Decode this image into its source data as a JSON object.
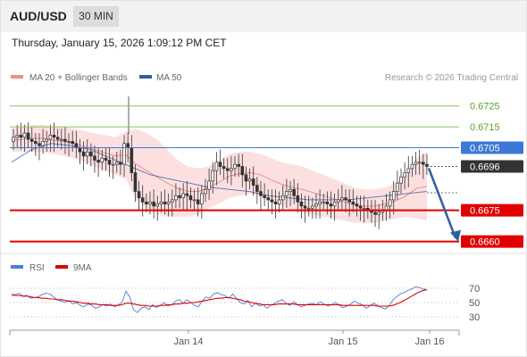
{
  "header": {
    "symbol": "AUD/USD",
    "timeframe": "30 MIN"
  },
  "datetime": "Thursday, January 15, 2026 1:09:12 PM CET",
  "legend": {
    "bollinger": "MA 20 + Bollinger Bands",
    "ma50": "MA 50",
    "credit": "Research © 2026 Trading Central",
    "rsi": "RSI",
    "rsi_ma": "9MA"
  },
  "colors": {
    "bollinger": "#f08c8c",
    "ma50": "#2f5f9e",
    "support": "#e00000",
    "resistance": "#88c45a",
    "pivot": "#3c78d8",
    "arrow": "#2f5f9e",
    "rsi": "#4a7fd4",
    "rsi_ma": "#e00000"
  },
  "chart_data": [
    {
      "type": "candlestick",
      "title": "AUD/USD 30 MIN",
      "ylim": [
        0.6656,
        0.6733
      ],
      "x_ticks": [
        "Jan 14",
        "Jan 15",
        "Jan 16"
      ],
      "levels": [
        {
          "label": "0.6725",
          "value": 0.6725,
          "kind": "resistance"
        },
        {
          "label": "0.6715",
          "value": 0.6715,
          "kind": "resistance"
        },
        {
          "label": "0.6705",
          "value": 0.6705,
          "kind": "pivot"
        },
        {
          "label": "0.6696",
          "value": 0.6696,
          "kind": "last"
        },
        {
          "label": "0.6675",
          "value": 0.6675,
          "kind": "support"
        },
        {
          "label": "0.6660",
          "value": 0.666,
          "kind": "support"
        }
      ],
      "close": [
        0.671,
        0.6711,
        0.671,
        0.6712,
        0.6709,
        0.6708,
        0.6707,
        0.6706,
        0.6708,
        0.6709,
        0.6711,
        0.671,
        0.6709,
        0.6709,
        0.6708,
        0.6708,
        0.6707,
        0.6705,
        0.6703,
        0.6701,
        0.6703,
        0.6701,
        0.6699,
        0.6698,
        0.67,
        0.6699,
        0.6697,
        0.6697,
        0.6698,
        0.6697,
        0.6707,
        0.6705,
        0.6693,
        0.6684,
        0.6681,
        0.6679,
        0.6678,
        0.6679,
        0.6677,
        0.6678,
        0.6679,
        0.6678,
        0.6679,
        0.668,
        0.6682,
        0.6681,
        0.6683,
        0.6682,
        0.668,
        0.668,
        0.6678,
        0.6683,
        0.6685,
        0.6689,
        0.6694,
        0.6698,
        0.6696,
        0.6695,
        0.6694,
        0.6695,
        0.6697,
        0.6696,
        0.6692,
        0.6689,
        0.669,
        0.6687,
        0.6684,
        0.6682,
        0.6681,
        0.668,
        0.6679,
        0.6678,
        0.668,
        0.6682,
        0.6684,
        0.6685,
        0.6682,
        0.6679,
        0.6677,
        0.6676,
        0.6676,
        0.6677,
        0.6678,
        0.6679,
        0.6679,
        0.6678,
        0.6677,
        0.6679,
        0.668,
        0.6681,
        0.668,
        0.6679,
        0.6678,
        0.6677,
        0.6676,
        0.6676,
        0.6675,
        0.6674,
        0.6673,
        0.6674,
        0.6675,
        0.6677,
        0.668,
        0.6684,
        0.6688,
        0.6691,
        0.6693,
        0.6695,
        0.6697,
        0.6698,
        0.6698,
        0.6697,
        0.6696
      ],
      "ma50_level": [
        0.6698,
        0.6704,
        0.6707,
        0.6706,
        0.6704,
        0.67,
        0.6696,
        0.6692,
        0.669,
        0.6688,
        0.6686,
        0.6685,
        0.6684,
        0.6682,
        0.6681,
        0.668,
        0.668,
        0.668,
        0.6681,
        0.6682,
        0.6683,
        0.6684
      ],
      "bb_upper": [
        0.6714,
        0.6715,
        0.6716,
        0.6716,
        0.6715,
        0.6715,
        0.6714,
        0.6713,
        0.6712,
        0.6711,
        0.671,
        0.6713,
        0.6714,
        0.6712,
        0.6709,
        0.6704,
        0.6699,
        0.6696,
        0.6695,
        0.6696,
        0.6699,
        0.6702,
        0.6703,
        0.6703,
        0.6702,
        0.67,
        0.6698,
        0.6697,
        0.6696,
        0.6694,
        0.6692,
        0.669,
        0.6688,
        0.6686,
        0.6685,
        0.6685,
        0.6686,
        0.6688,
        0.6692,
        0.67,
        0.6703
      ],
      "bb_lower": [
        0.6703,
        0.6703,
        0.6703,
        0.6703,
        0.6702,
        0.6701,
        0.67,
        0.6698,
        0.6696,
        0.6694,
        0.6692,
        0.669,
        0.668,
        0.6676,
        0.6673,
        0.6672,
        0.6672,
        0.6672,
        0.6673,
        0.6676,
        0.6678,
        0.6681,
        0.6682,
        0.6683,
        0.6682,
        0.6679,
        0.6677,
        0.6675,
        0.6674,
        0.6673,
        0.6672,
        0.6671,
        0.667,
        0.6669,
        0.6669,
        0.6669,
        0.667,
        0.6671,
        0.6672,
        0.6671,
        0.667
      ],
      "forecast": {
        "from": 0.6696,
        "to": 0.666
      }
    },
    {
      "type": "line",
      "title": "RSI",
      "ylim": [
        20,
        80
      ],
      "y_ticks": [
        "70",
        "50",
        "30"
      ],
      "series": [
        {
          "name": "RSI",
          "values": [
            62,
            61,
            63,
            59,
            60,
            56,
            57,
            58,
            61,
            63,
            62,
            58,
            54,
            52,
            50,
            53,
            48,
            50,
            46,
            44,
            48,
            46,
            42,
            44,
            47,
            45,
            48,
            44,
            47,
            50,
            66,
            58,
            40,
            36,
            42,
            44,
            40,
            47,
            43,
            46,
            50,
            45,
            47,
            52,
            54,
            49,
            54,
            50,
            46,
            44,
            52,
            58,
            56,
            62,
            64,
            61,
            60,
            56,
            62,
            56,
            50,
            48,
            53,
            44,
            49,
            45,
            47,
            42,
            46,
            49,
            52,
            54,
            49,
            46,
            51,
            47,
            44,
            46,
            48,
            49,
            47,
            51,
            48,
            45,
            47,
            50,
            46,
            43,
            45,
            48,
            52,
            49,
            47,
            42,
            45,
            49,
            46,
            43,
            41,
            45,
            53,
            58,
            62,
            64,
            67,
            69,
            72,
            71,
            69,
            68
          ]
        },
        {
          "name": "9MA",
          "values": [
            60,
            60,
            60,
            59,
            59,
            58,
            57,
            57,
            56,
            56,
            55,
            55,
            54,
            54,
            53,
            52,
            52,
            51,
            50,
            49,
            49,
            48,
            48,
            47,
            47,
            47,
            46,
            46,
            46,
            47,
            49,
            49,
            48,
            47,
            46,
            46,
            45,
            45,
            45,
            46,
            46,
            47,
            47,
            48,
            48,
            49,
            49,
            50,
            50,
            51,
            52,
            53,
            54,
            55,
            56,
            56,
            57,
            57,
            56,
            55,
            54,
            52,
            51,
            50,
            49,
            48,
            47,
            47,
            47,
            47,
            48,
            48,
            48,
            48,
            48,
            47,
            47,
            47,
            47,
            47,
            47,
            47,
            47,
            47,
            47,
            47,
            47,
            46,
            46,
            46,
            46,
            46,
            46,
            46,
            46,
            46,
            45,
            45,
            45,
            45,
            46,
            48,
            50,
            53,
            56,
            59,
            62,
            65,
            67,
            68
          ]
        }
      ]
    }
  ]
}
